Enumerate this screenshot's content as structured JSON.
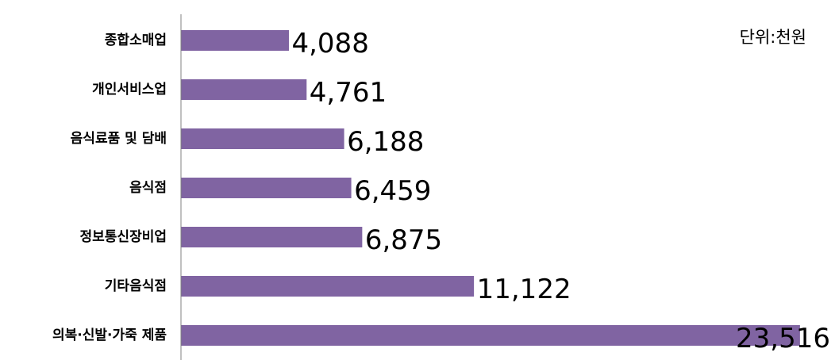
{
  "chart_data": {
    "type": "bar",
    "orientation": "horizontal",
    "categories": [
      "종합소매업",
      "개인서비스업",
      "음식료품 및 담배",
      "음식점",
      "정보통신장비업",
      "기타음식점",
      "의복·신발·가죽 제품"
    ],
    "values": [
      4088,
      4761,
      6188,
      6459,
      6875,
      11122,
      23516
    ],
    "value_labels": [
      "4,088",
      "4,761",
      "6,188",
      "6,459",
      "6,875",
      "11,122",
      "23,516"
    ],
    "unit_note": "단위:천원",
    "bar_color": "#8064A2",
    "xlim": [
      0,
      24500
    ],
    "grid": false,
    "legend": "none"
  }
}
